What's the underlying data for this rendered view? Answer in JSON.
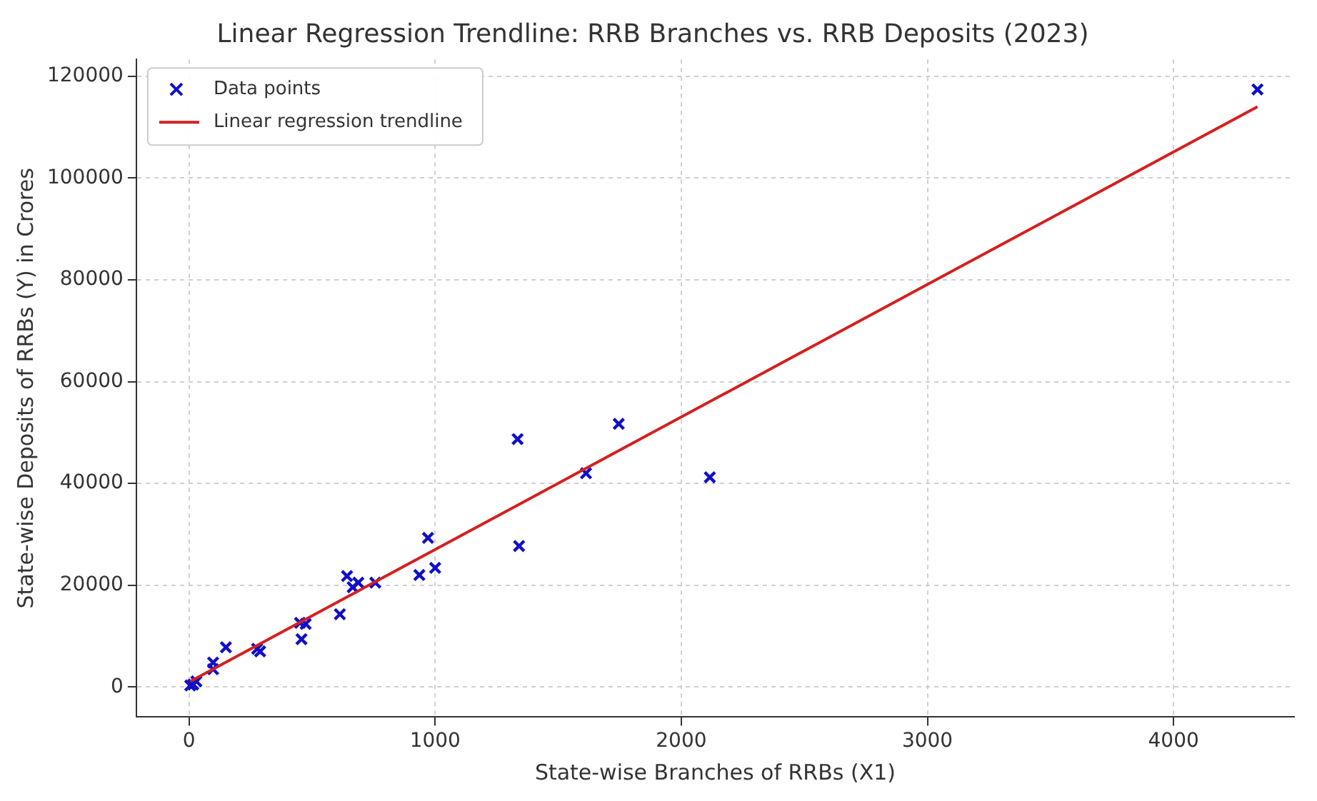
{
  "chart_data": {
    "type": "scatter",
    "title": "Linear Regression Trendline: RRB Branches vs. RRB Deposits (2023)",
    "xlabel": "State-wise Branches of RRBs (X1)",
    "ylabel": "State-wise Deposits of RRBs (Y) in Crores",
    "xlim": [
      -214,
      4490
    ],
    "ylim": [
      -5900,
      123300
    ],
    "xticks": [
      0,
      1000,
      2000,
      3000,
      4000
    ],
    "yticks": [
      0,
      20000,
      40000,
      60000,
      80000,
      100000,
      120000
    ],
    "grid": true,
    "legend": "top left",
    "series": [
      {
        "name": "Data points",
        "marker": "cross",
        "color": "#1010c8",
        "x": [
          5,
          17,
          30,
          98,
          98,
          150,
          277,
          289,
          451,
          474,
          457,
          613,
          642,
          665,
          688,
          757,
          936,
          971,
          1000,
          1335,
          1341,
          1613,
          1746,
          2116,
          4341
        ],
        "values": [
          300,
          500,
          1100,
          4800,
          3500,
          7800,
          7500,
          7000,
          12600,
          12400,
          9400,
          14300,
          21800,
          19600,
          20500,
          20500,
          22000,
          29300,
          23400,
          48700,
          27700,
          42000,
          51700,
          41200,
          117400
        ]
      },
      {
        "name": "Linear regression trendline",
        "type": "line",
        "marker": "none",
        "line_style": "solid",
        "color": "#d42020",
        "x": [
          5,
          4341
        ],
        "values": [
          1100,
          114000
        ]
      }
    ]
  }
}
